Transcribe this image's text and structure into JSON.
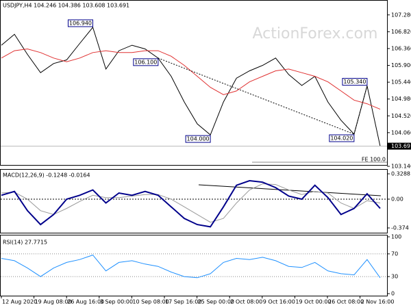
{
  "chart_data": [
    {
      "type": "line",
      "title": "USDJPY,H4  104.246 104.386 103.608 103.691",
      "series": [
        {
          "color": "#000000",
          "values": [
            106.45,
            106.75,
            106.2,
            105.7,
            105.95,
            106.05,
            106.5,
            106.94,
            105.8,
            106.3,
            106.45,
            106.35,
            106.1,
            105.6,
            104.9,
            104.3,
            104.0,
            104.9,
            105.55,
            105.75,
            105.9,
            106.1,
            105.65,
            105.35,
            105.6,
            104.9,
            104.4,
            104.02,
            105.34,
            103.691
          ]
        },
        {
          "color": "#e03030",
          "values": [
            106.1,
            106.3,
            106.35,
            106.25,
            106.1,
            106.0,
            106.1,
            106.25,
            106.3,
            106.25,
            106.25,
            106.3,
            106.3,
            106.15,
            105.9,
            105.6,
            105.3,
            105.1,
            105.2,
            105.45,
            105.6,
            105.75,
            105.8,
            105.7,
            105.6,
            105.45,
            105.2,
            104.95,
            104.85,
            104.7
          ]
        }
      ],
      "ylim": [
        103.14,
        107.65
      ],
      "yticks": [
        {
          "value": 107.28,
          "label": "107.280"
        },
        {
          "value": 106.82,
          "label": "106.820"
        },
        {
          "value": 106.36,
          "label": "106.360"
        },
        {
          "value": 105.9,
          "label": "105.900"
        },
        {
          "value": 105.44,
          "label": "105.440"
        },
        {
          "value": 104.98,
          "label": "104.980"
        },
        {
          "value": 104.52,
          "label": "104.520"
        },
        {
          "value": 104.06,
          "label": "104.060"
        },
        {
          "value": 103.14,
          "label": "103.140"
        }
      ],
      "last_price": 103.691,
      "annotations": [
        "106.940",
        "106.100",
        "104.000",
        "104.020",
        "105.340"
      ],
      "fe_label": "FE 100.0"
    },
    {
      "type": "line",
      "title": "MACD(12,26,9) -0.1248 -0.0164",
      "series": [
        {
          "color": "#999999",
          "values": [
            0.08,
            0.09,
            0.0,
            -0.15,
            -0.2,
            -0.12,
            -0.03,
            0.05,
            0.02,
            0.02,
            0.04,
            0.06,
            0.06,
            0.0,
            -0.1,
            -0.2,
            -0.3,
            -0.25,
            -0.05,
            0.12,
            0.2,
            0.19,
            0.12,
            0.06,
            0.1,
            0.08,
            -0.05,
            -0.12,
            -0.02,
            -0.05
          ]
        },
        {
          "color": "#00008b",
          "values": [
            0.05,
            0.1,
            -0.15,
            -0.33,
            -0.2,
            0.0,
            0.05,
            0.12,
            -0.05,
            0.08,
            0.05,
            0.1,
            0.05,
            -0.1,
            -0.25,
            -0.33,
            -0.36,
            -0.1,
            0.18,
            0.24,
            0.22,
            0.15,
            0.04,
            0.0,
            0.18,
            0.02,
            -0.2,
            -0.12,
            0.07,
            -0.12
          ]
        }
      ],
      "ylim": [
        -0.445,
        0.382
      ],
      "yticks": [
        0.3288,
        {
          "value": 0,
          "label": "0.00"
        },
        -0.374
      ]
    },
    {
      "type": "line",
      "title": "RSI(14) 27.7715",
      "series": [
        {
          "color": "#1e90ff",
          "values": [
            62,
            58,
            45,
            30,
            45,
            55,
            60,
            68,
            40,
            55,
            58,
            52,
            48,
            38,
            30,
            28,
            35,
            55,
            62,
            60,
            64,
            58,
            48,
            46,
            55,
            40,
            35,
            33,
            60,
            27.7715
          ]
        }
      ],
      "ylim": [
        0,
        100
      ],
      "yticks": [
        100,
        70,
        30,
        0
      ]
    }
  ],
  "watermark": "ActionForex.com",
  "x_labels": [
    "12 Aug 2020",
    "19 Aug 08:00",
    "26 Aug 16:00",
    "3 Sep 00:00",
    "10 Sep 08:00",
    "17 Sep 16:00",
    "25 Sep 00:00",
    "2 Oct 08:00",
    "9 Oct 16:00",
    "19 Oct 00:00",
    "26 Oct 08:00",
    "2 Nov 16:00"
  ]
}
